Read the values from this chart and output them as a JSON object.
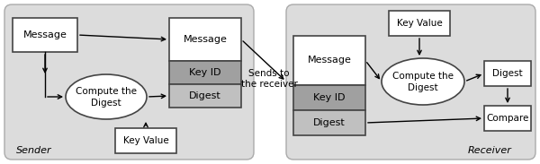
{
  "bg_color": "#dcdcdc",
  "white": "#ffffff",
  "gray_mid": "#a0a0a0",
  "gray_light": "#c0c0c0",
  "border_dark": "#444444",
  "border_light": "#888888",
  "text_color": "#000000",
  "sender_label": "Sender",
  "receiver_label": "Receiver",
  "sends_label": "Sends to\nthe receiver",
  "fig_w": 6.0,
  "fig_h": 1.83,
  "dpi": 100
}
